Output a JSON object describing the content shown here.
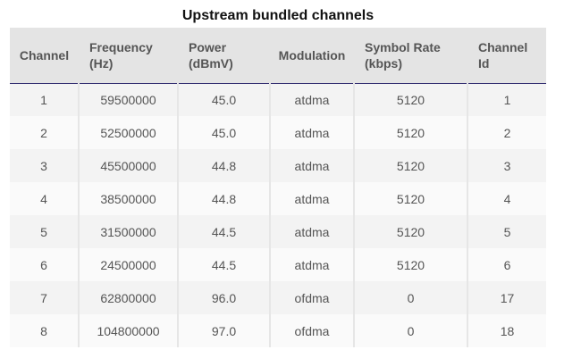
{
  "title": "Upstream bundled channels",
  "table": {
    "headers": [
      {
        "line1": "Channel",
        "line2": ""
      },
      {
        "line1": "Frequency",
        "line2": "(Hz)"
      },
      {
        "line1": "Power",
        "line2": "(dBmV)"
      },
      {
        "line1": "Modulation",
        "line2": ""
      },
      {
        "line1": "Symbol Rate",
        "line2": "(kbps)"
      },
      {
        "line1": "Channel",
        "line2": "Id"
      }
    ],
    "rows": [
      [
        "1",
        "59500000",
        "45.0",
        "atdma",
        "5120",
        "1"
      ],
      [
        "2",
        "52500000",
        "45.0",
        "atdma",
        "5120",
        "2"
      ],
      [
        "3",
        "45500000",
        "44.8",
        "atdma",
        "5120",
        "3"
      ],
      [
        "4",
        "38500000",
        "44.8",
        "atdma",
        "5120",
        "4"
      ],
      [
        "5",
        "31500000",
        "44.5",
        "atdma",
        "5120",
        "5"
      ],
      [
        "6",
        "24500000",
        "44.5",
        "atdma",
        "5120",
        "6"
      ],
      [
        "7",
        "62800000",
        "96.0",
        "ofdma",
        "0",
        "17"
      ],
      [
        "8",
        "104800000",
        "97.0",
        "ofdma",
        "0",
        "18"
      ]
    ]
  }
}
